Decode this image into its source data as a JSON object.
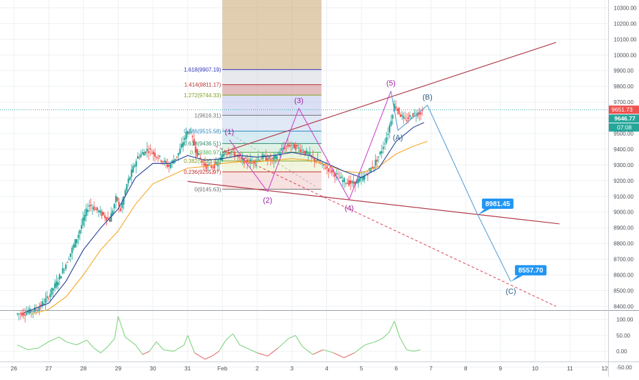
{
  "chart_data": {
    "type": "candlestick",
    "main_panel": {
      "ylim": [
        8380,
        10350
      ],
      "yticks": [
        8400,
        8500,
        8600,
        8700,
        8800,
        8900,
        9000,
        9100,
        9200,
        9300,
        9400,
        9500,
        9600,
        9700,
        9800,
        9900,
        10000,
        10100,
        10200,
        10300
      ],
      "ytick_labels": [
        "8400.00",
        "8500.00",
        "8600.00",
        "8700.00",
        "8800.00",
        "8900.00",
        "9000.00",
        "9100.00",
        "9200.00",
        "9300.00",
        "9400.00",
        "9500.00",
        "9600.00",
        "9700.00",
        "9800.00",
        "9900.00",
        "10000.00",
        "10100.00",
        "10200.00",
        "10300.00"
      ],
      "xlim": [
        25.6,
        43.1
      ],
      "xticks": [
        {
          "x": 26,
          "label": "26"
        },
        {
          "x": 27,
          "label": "27"
        },
        {
          "x": 28,
          "label": "28"
        },
        {
          "x": 29,
          "label": "29"
        },
        {
          "x": 30,
          "label": "30"
        },
        {
          "x": 31,
          "label": "31"
        },
        {
          "x": 32,
          "label": "Feb"
        },
        {
          "x": 33,
          "label": "2"
        },
        {
          "x": 34,
          "label": "3"
        },
        {
          "x": 35,
          "label": "4"
        },
        {
          "x": 36,
          "label": "5"
        },
        {
          "x": 37,
          "label": "6"
        },
        {
          "x": 38,
          "label": "7"
        },
        {
          "x": 39,
          "label": "8"
        },
        {
          "x": 40,
          "label": "9"
        },
        {
          "x": 41,
          "label": "10"
        },
        {
          "x": 42,
          "label": "11"
        },
        {
          "x": 43,
          "label": "12"
        }
      ],
      "price_trace": [
        [
          26.1,
          8350
        ],
        [
          26.4,
          8360
        ],
        [
          26.7,
          8380
        ],
        [
          27.0,
          8450
        ],
        [
          27.3,
          8560
        ],
        [
          27.6,
          8700
        ],
        [
          27.9,
          8860
        ],
        [
          28.2,
          9050
        ],
        [
          28.5,
          9000
        ],
        [
          28.8,
          8950
        ],
        [
          29.0,
          9100
        ],
        [
          29.1,
          9000
        ],
        [
          29.3,
          9180
        ],
        [
          29.6,
          9350
        ],
        [
          29.9,
          9400
        ],
        [
          30.2,
          9350
        ],
        [
          30.5,
          9290
        ],
        [
          30.8,
          9380
        ],
        [
          31.0,
          9500
        ],
        [
          31.1,
          9520
        ],
        [
          31.3,
          9380
        ],
        [
          31.5,
          9300
        ],
        [
          31.7,
          9290
        ],
        [
          31.9,
          9300
        ],
        [
          32.1,
          9380
        ],
        [
          32.3,
          9390
        ],
        [
          32.6,
          9330
        ],
        [
          32.9,
          9320
        ],
        [
          33.2,
          9350
        ],
        [
          33.5,
          9330
        ],
        [
          33.8,
          9410
        ],
        [
          34.0,
          9430
        ],
        [
          34.3,
          9400
        ],
        [
          34.6,
          9350
        ],
        [
          34.9,
          9300
        ],
        [
          35.2,
          9260
        ],
        [
          35.5,
          9200
        ],
        [
          35.8,
          9180
        ],
        [
          36.1,
          9220
        ],
        [
          36.4,
          9300
        ],
        [
          36.6,
          9380
        ],
        [
          36.8,
          9500
        ],
        [
          37.0,
          9690
        ],
        [
          37.1,
          9640
        ],
        [
          37.3,
          9580
        ],
        [
          37.5,
          9620
        ],
        [
          37.8,
          9640
        ]
      ],
      "ema_blue": [
        [
          26.3,
          8360
        ],
        [
          27,
          8420
        ],
        [
          27.5,
          8560
        ],
        [
          28,
          8760
        ],
        [
          28.5,
          8900
        ],
        [
          29,
          9020
        ],
        [
          29.5,
          9220
        ],
        [
          30,
          9310
        ],
        [
          30.5,
          9310
        ],
        [
          31,
          9360
        ],
        [
          31.5,
          9330
        ],
        [
          32,
          9340
        ],
        [
          32.5,
          9360
        ],
        [
          33,
          9350
        ],
        [
          33.5,
          9360
        ],
        [
          34,
          9380
        ],
        [
          34.5,
          9360
        ],
        [
          35,
          9310
        ],
        [
          35.5,
          9260
        ],
        [
          36,
          9220
        ],
        [
          36.5,
          9280
        ],
        [
          37,
          9450
        ],
        [
          37.5,
          9540
        ],
        [
          37.8,
          9570
        ]
      ],
      "ema_orange": [
        [
          26.5,
          8350
        ],
        [
          27,
          8380
        ],
        [
          27.5,
          8460
        ],
        [
          28,
          8600
        ],
        [
          28.5,
          8760
        ],
        [
          29,
          8880
        ],
        [
          29.5,
          9050
        ],
        [
          30,
          9180
        ],
        [
          30.5,
          9230
        ],
        [
          31,
          9280
        ],
        [
          31.5,
          9290
        ],
        [
          32,
          9310
        ],
        [
          32.5,
          9320
        ],
        [
          33,
          9320
        ],
        [
          33.5,
          9330
        ],
        [
          34,
          9340
        ],
        [
          34.5,
          9330
        ],
        [
          35,
          9300
        ],
        [
          35.5,
          9260
        ],
        [
          36,
          9250
        ],
        [
          36.5,
          9290
        ],
        [
          37,
          9370
        ],
        [
          37.5,
          9420
        ],
        [
          37.9,
          9450
        ]
      ],
      "fibonacci": [
        {
          "label": "1.618(9907.19)",
          "value": 9907.19,
          "color": "#3030c0"
        },
        {
          "label": "1.414(9811.17)",
          "value": 9811.17,
          "color": "#c03030"
        },
        {
          "label": "1.272(9744.33)",
          "value": 9744.33,
          "color": "#80a020"
        },
        {
          "label": "1(9616.31)",
          "value": 9616.31,
          "color": "#707070"
        },
        {
          "label": "0.786(9515.58)",
          "value": 9515.58,
          "color": "#2a8ac0"
        },
        {
          "label": "0.618(9436.51)",
          "value": 9436.51,
          "color": "#2a8a6a"
        },
        {
          "label": "0.5(9380.97)",
          "value": 9380.97,
          "color": "#4caf50"
        },
        {
          "label": "0.382(9325.43)",
          "value": 9325.43,
          "color": "#8aa020"
        },
        {
          "label": "0.236(9255.97)",
          "value": 9255.97,
          "color": "#c03030"
        },
        {
          "label": "0(9145.63)",
          "value": 9145.63,
          "color": "#707070"
        }
      ],
      "elliott_impulse": [
        {
          "x": 32.2,
          "y": 9460,
          "label": "(1)"
        },
        {
          "x": 33.3,
          "y": 9130,
          "label": "(2)"
        },
        {
          "x": 34.2,
          "y": 9660,
          "label": "(3)"
        },
        {
          "x": 35.65,
          "y": 9080,
          "label": "(4)"
        },
        {
          "x": 36.85,
          "y": 9770,
          "label": "(5)"
        }
      ],
      "corrective_path": [
        {
          "x": 36.85,
          "y": 9770,
          "label": ""
        },
        {
          "x": 37.05,
          "y": 9520,
          "label": "(A)"
        },
        {
          "x": 37.9,
          "y": 9680,
          "label": "(B)"
        },
        {
          "x": 39.35,
          "y": 8981.45,
          "label": ""
        },
        {
          "x": 40.3,
          "y": 8557.7,
          "label": "(C)"
        }
      ],
      "price_callouts": [
        "8981.45",
        "8557.70"
      ],
      "current_price_labels": [
        "9651.73",
        "9646.77",
        "07:08"
      ],
      "current_price_line": 9651.73
    },
    "oscillator_panel": {
      "ylim": [
        -30,
        125
      ],
      "yticks": [
        100,
        50,
        0,
        -50
      ],
      "ytick_labels": [
        "100.00",
        "50.00",
        "0.00",
        "-50.00"
      ],
      "series": [
        [
          26.1,
          20
        ],
        [
          26.4,
          5
        ],
        [
          26.7,
          10
        ],
        [
          27.0,
          30
        ],
        [
          27.3,
          45
        ],
        [
          27.5,
          30
        ],
        [
          27.8,
          20
        ],
        [
          28.1,
          35
        ],
        [
          28.3,
          10
        ],
        [
          28.5,
          -5
        ],
        [
          28.7,
          15
        ],
        [
          28.9,
          40
        ],
        [
          29.0,
          110
        ],
        [
          29.2,
          45
        ],
        [
          29.5,
          20
        ],
        [
          29.7,
          -10
        ],
        [
          29.9,
          0
        ],
        [
          30.1,
          30
        ],
        [
          30.3,
          5
        ],
        [
          30.6,
          0
        ],
        [
          30.9,
          20
        ],
        [
          31.0,
          50
        ],
        [
          31.2,
          -5
        ],
        [
          31.5,
          -25
        ],
        [
          31.7,
          -15
        ],
        [
          31.9,
          0
        ],
        [
          32.1,
          35
        ],
        [
          32.3,
          55
        ],
        [
          32.5,
          20
        ],
        [
          32.8,
          5
        ],
        [
          33.0,
          -5
        ],
        [
          33.3,
          -15
        ],
        [
          33.6,
          10
        ],
        [
          33.9,
          40
        ],
        [
          34.1,
          50
        ],
        [
          34.3,
          15
        ],
        [
          34.6,
          -10
        ],
        [
          34.9,
          5
        ],
        [
          35.2,
          -5
        ],
        [
          35.5,
          -20
        ],
        [
          35.8,
          -5
        ],
        [
          36.1,
          20
        ],
        [
          36.4,
          30
        ],
        [
          36.6,
          40
        ],
        [
          36.8,
          60
        ],
        [
          36.95,
          95
        ],
        [
          37.1,
          45
        ],
        [
          37.3,
          5
        ],
        [
          37.5,
          0
        ],
        [
          37.7,
          5
        ]
      ]
    }
  }
}
